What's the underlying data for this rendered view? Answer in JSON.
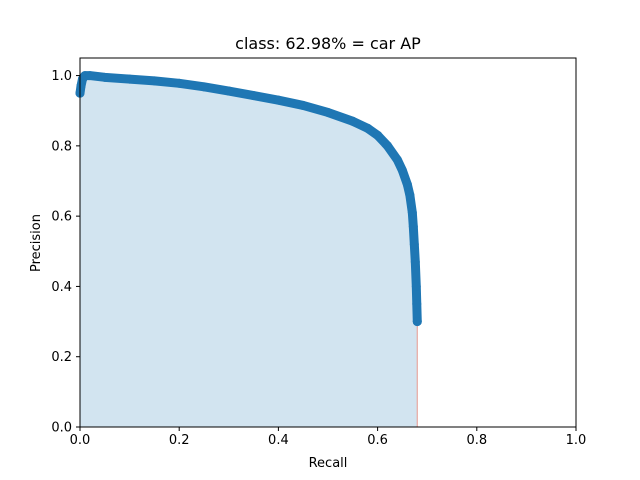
{
  "chart_data": {
    "type": "area",
    "title": "class: 62.98% = car AP",
    "xlabel": "Recall",
    "ylabel": "Precision",
    "xlim": [
      0,
      1
    ],
    "ylim": [
      0,
      1.05
    ],
    "xticks": [
      "0.0",
      "0.2",
      "0.4",
      "0.6",
      "0.8",
      "1.0"
    ],
    "yticks": [
      "0.0",
      "0.2",
      "0.4",
      "0.6",
      "0.8",
      "1.0"
    ],
    "grid": false,
    "series": [
      {
        "color": "#1f77b4",
        "fill_color": "#1f77b4",
        "x": [
          0.0,
          0.002,
          0.005,
          0.01,
          0.02,
          0.05,
          0.1,
          0.15,
          0.2,
          0.25,
          0.3,
          0.35,
          0.4,
          0.45,
          0.5,
          0.55,
          0.58,
          0.6,
          0.62,
          0.64,
          0.65,
          0.66,
          0.665,
          0.67,
          0.672,
          0.674,
          0.676,
          0.678,
          0.679,
          0.68
        ],
        "y": [
          0.95,
          0.97,
          0.99,
          1.0,
          1.0,
          0.995,
          0.99,
          0.985,
          0.978,
          0.968,
          0.956,
          0.943,
          0.93,
          0.915,
          0.895,
          0.87,
          0.85,
          0.83,
          0.8,
          0.76,
          0.73,
          0.69,
          0.66,
          0.61,
          0.57,
          0.52,
          0.47,
          0.4,
          0.35,
          0.3
        ]
      }
    ],
    "baseline_color": "#e8a8a0"
  }
}
